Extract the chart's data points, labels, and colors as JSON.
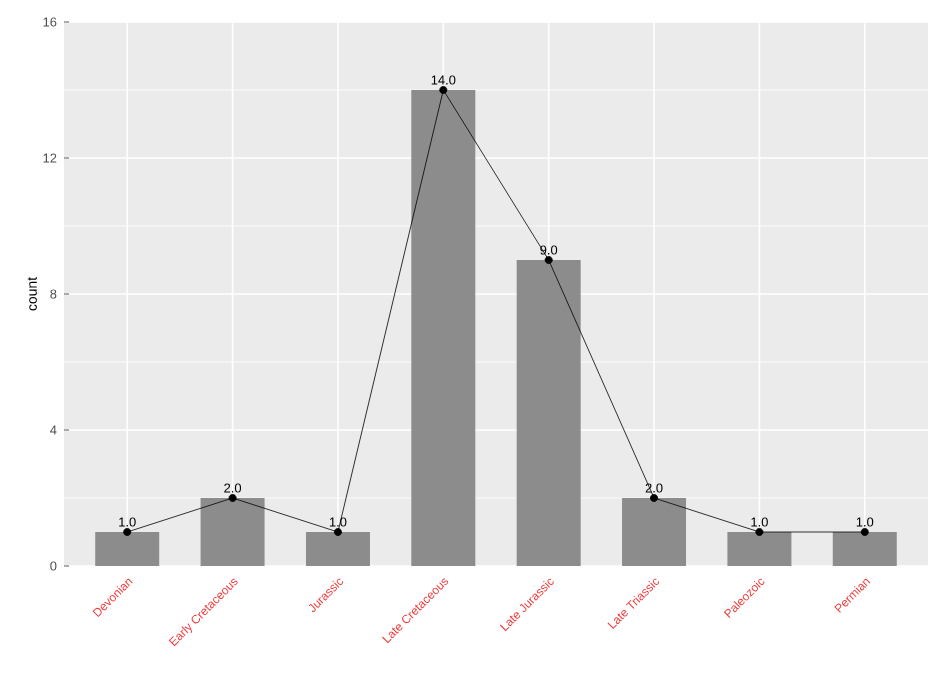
{
  "chart_data": {
    "type": "bar",
    "ylabel": "count",
    "categories": [
      "Devonian",
      "Early Cretaceous",
      "Jurassic",
      "Late Cretaceous",
      "Late Jurassic",
      "Late Triassic",
      "Paleozoic",
      "Permian"
    ],
    "series": [
      {
        "color": "#8c8c8c",
        "values": [
          1,
          2,
          1,
          14,
          9,
          2,
          1,
          1
        ]
      },
      {
        "type": "line",
        "color": "#000000",
        "values": [
          1,
          2,
          1,
          14,
          9,
          2,
          1,
          1
        ],
        "value_labels": [
          "1.0",
          "2.0",
          "1.0",
          "14.0",
          "9.0",
          "2.0",
          "1.0",
          "1.0"
        ]
      }
    ],
    "ylim": [
      0,
      16
    ],
    "yticks": [
      0,
      4,
      8,
      12,
      16
    ],
    "grid": true,
    "marker": "circle",
    "line_style": "solid"
  }
}
